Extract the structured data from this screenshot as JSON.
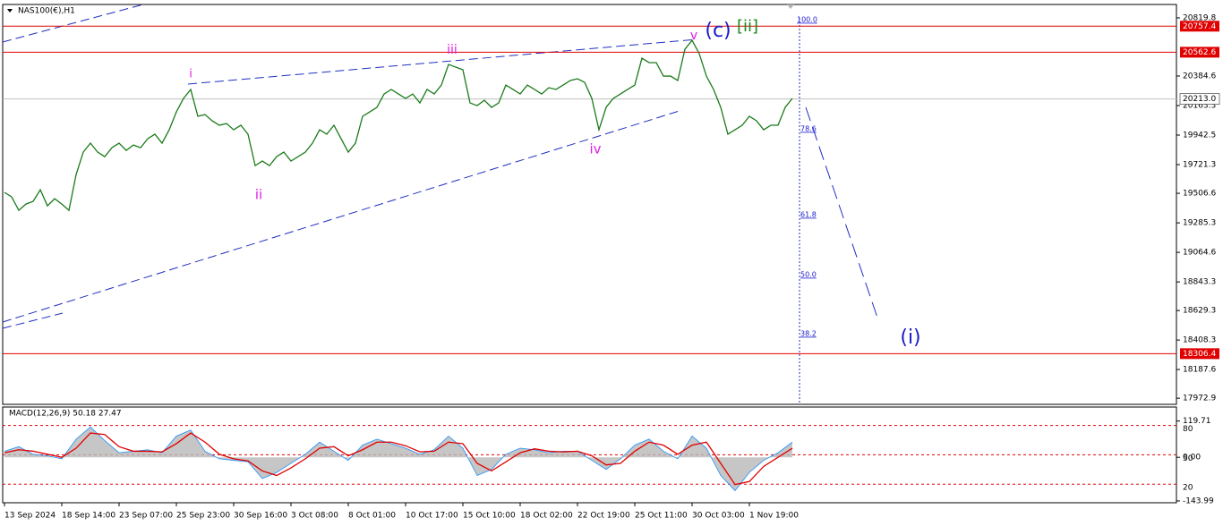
{
  "chart_data": [
    {
      "type": "line",
      "title": "NAS100(€),H1",
      "color": "#1a7a1a",
      "categories": [
        "13 Sep 2024",
        null,
        null,
        null,
        null,
        null,
        null,
        null,
        "18 Sep 14:00",
        null,
        null,
        null,
        null,
        null,
        null,
        null,
        "23 Sep 07:00",
        null,
        null,
        null,
        null,
        null,
        null,
        null,
        "25 Sep 23:00",
        null,
        null,
        null,
        null,
        null,
        null,
        null,
        "30 Sep 16:00",
        null,
        null,
        null,
        null,
        null,
        null,
        null,
        "3 Oct 08:00",
        null,
        null,
        null,
        null,
        null,
        null,
        null,
        "8 Oct 01:00",
        null,
        null,
        null,
        null,
        null,
        null,
        null,
        "10 Oct 17:00",
        null,
        null,
        null,
        null,
        null,
        null,
        null,
        "15 Oct 10:00",
        null,
        null,
        null,
        null,
        null,
        null,
        null,
        "18 Oct 02:00",
        null,
        null,
        null,
        null,
        null,
        null,
        null,
        "22 Oct 19:00",
        null,
        null,
        null,
        null,
        null,
        null,
        null,
        "25 Oct 11:00",
        null,
        null,
        null,
        null,
        null,
        null,
        null,
        "30 Oct 03:00",
        null,
        null,
        null,
        null,
        null,
        null,
        null,
        "1 Nov 19:00",
        null,
        null,
        null,
        null,
        null,
        null
      ],
      "values": [
        19513,
        19480,
        19379,
        19426,
        19446,
        19533,
        19413,
        19466,
        19426,
        19379,
        19647,
        19815,
        19882,
        19815,
        19781,
        19848,
        19882,
        19828,
        19868,
        19848,
        19915,
        19949,
        19882,
        19982,
        20116,
        20217,
        20284,
        20083,
        20096,
        20049,
        20016,
        20029,
        19982,
        20016,
        19949,
        19714,
        19748,
        19714,
        19781,
        19815,
        19748,
        19781,
        19815,
        19882,
        19982,
        19949,
        20016,
        19915,
        19815,
        19882,
        20083,
        20116,
        20150,
        20250,
        20284,
        20250,
        20217,
        20250,
        20183,
        20284,
        20250,
        20317,
        20471,
        20451,
        20431,
        20183,
        20163,
        20203,
        20150,
        20183,
        20317,
        20284,
        20250,
        20317,
        20284,
        20250,
        20297,
        20284,
        20317,
        20351,
        20364,
        20337,
        20217,
        19982,
        20150,
        20217,
        20250,
        20284,
        20317,
        20518,
        20485,
        20485,
        20384,
        20384,
        20351,
        20585,
        20652,
        20552,
        20384,
        20284,
        20150,
        19949,
        19982,
        20016,
        20083,
        20049,
        19982,
        20016,
        20016,
        20150,
        20217
      ],
      "ylim": [
        17927,
        20920
      ],
      "yticks": [
        20819.8,
        20384.6,
        20163.3,
        19942.5,
        19721.3,
        19506.6,
        19285.3,
        19064.6,
        18843.3,
        18629.3,
        18408.3,
        18187.6,
        17972.9
      ],
      "hlines": [
        {
          "value": 20757.4,
          "color": "#e00000"
        },
        {
          "value": 20562.6,
          "color": "#e00000"
        },
        {
          "value": 20213,
          "label": "20213.0",
          "color": "#c0c0c0"
        },
        {
          "value": 18306.4,
          "color": "#e00000"
        }
      ],
      "annotations": [
        {
          "text": "i",
          "color": "#e020e0"
        },
        {
          "text": "ii",
          "color": "#e020e0"
        },
        {
          "text": "iii",
          "color": "#e020e0"
        },
        {
          "text": "iv",
          "color": "#e020e0"
        },
        {
          "text": "v",
          "color": "#e020e0"
        },
        {
          "text": "(c)",
          "color": "#1a1acc"
        },
        {
          "text": "[ii]",
          "color": "#1a8a1a"
        },
        {
          "text": "(i)",
          "color": "#1a1acc"
        },
        {
          "text": "100.0",
          "color": "#1a1acc"
        },
        {
          "text": "78.6",
          "color": "#1a1acc"
        },
        {
          "text": "61.8",
          "color": "#1a1acc"
        },
        {
          "text": "50.0",
          "color": "#1a1acc"
        },
        {
          "text": "38.2",
          "color": "#1a1acc"
        }
      ]
    },
    {
      "type": "macd",
      "title": "MACD(12,26,9) 50.18 27.47",
      "series": [
        {
          "name": "MACD",
          "color": "#b8b8b8",
          "values": [
            20,
            35,
            10,
            5,
            -5,
            60,
            100,
            55,
            15,
            20,
            25,
            15,
            70,
            90,
            20,
            -5,
            -10,
            -15,
            -70,
            -50,
            -20,
            10,
            50,
            20,
            -10,
            40,
            60,
            45,
            30,
            10,
            25,
            70,
            30,
            -60,
            -40,
            10,
            30,
            25,
            15,
            20,
            20,
            -10,
            -40,
            -5,
            40,
            60,
            20,
            -5,
            70,
            30,
            -60,
            -110,
            -50,
            -10,
            15,
            50
          ]
        },
        {
          "name": "Signal",
          "color": "#e00000",
          "values": [
            15,
            25,
            20,
            10,
            0,
            30,
            80,
            75,
            35,
            20,
            20,
            18,
            45,
            80,
            50,
            10,
            -5,
            -12,
            -45,
            -60,
            -35,
            -5,
            30,
            35,
            5,
            25,
            50,
            50,
            38,
            18,
            20,
            50,
            45,
            -20,
            -45,
            -15,
            15,
            28,
            20,
            18,
            20,
            5,
            -25,
            -20,
            20,
            50,
            40,
            10,
            40,
            50,
            -20,
            -90,
            -80,
            -30,
            0,
            30
          ]
        }
      ],
      "ylim": [
        -150,
        160
      ],
      "yticks": [
        119.71,
        {
          "value": 0,
          "label": "0.00"
        },
        -143.99
      ],
      "y2lim": [
        1,
        97
      ],
      "y2ticks": [
        80,
        50,
        20
      ]
    }
  ]
}
